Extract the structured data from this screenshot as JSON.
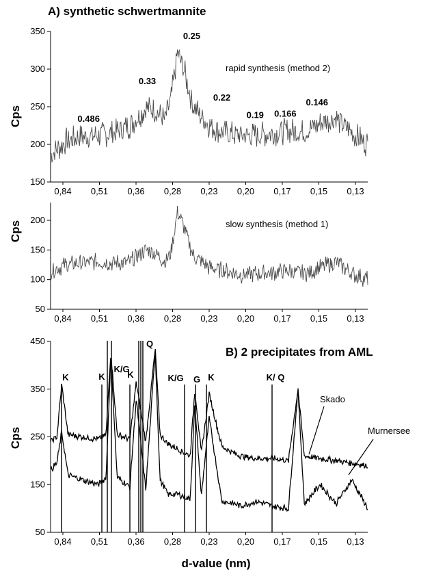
{
  "figure": {
    "x_axis_label": "d-value (nm)"
  },
  "chart_data": [
    {
      "type": "line",
      "title": "A) synthetic schwertmannite",
      "subtitle": "",
      "xlabel": "",
      "ylabel": "Cps",
      "ylim": [
        150,
        350
      ],
      "yticks": [
        150,
        200,
        250,
        300,
        350
      ],
      "xtick_labels": [
        "0,84",
        "0,51",
        "0,36",
        "0,28",
        "0,23",
        "0,20",
        "0,17",
        "0,15",
        "0,13"
      ],
      "series": [
        {
          "name": "rapid synthesis (method 2)",
          "color": "#4a4a4a",
          "x": [
            0,
            0.5,
            1,
            1.5,
            2,
            2.5,
            3,
            3.3,
            3.6,
            3.8,
            4,
            4.2,
            4.5,
            5,
            5.5,
            6,
            6.5,
            7,
            7.5,
            8,
            8.5,
            9,
            9.5,
            10
          ],
          "values": [
            185,
            205,
            210,
            212,
            215,
            225,
            248,
            245,
            232,
            260,
            322,
            300,
            250,
            225,
            215,
            212,
            212,
            215,
            218,
            216,
            228,
            235,
            215,
            200
          ]
        }
      ],
      "annotations": [
        {
          "text": "0.486",
          "x": 1.2,
          "y": 230
        },
        {
          "text": "0.33",
          "x": 3.05,
          "y": 280
        },
        {
          "text": "0.25",
          "x": 4.45,
          "y": 340
        },
        {
          "text": "0.22",
          "x": 5.4,
          "y": 258
        },
        {
          "text": "0.19",
          "x": 6.45,
          "y": 235
        },
        {
          "text": "0.166",
          "x": 7.4,
          "y": 237
        },
        {
          "text": "0.146",
          "x": 8.4,
          "y": 252
        }
      ],
      "series_label": "rapid synthesis (method 2)"
    },
    {
      "type": "line",
      "title": "",
      "xlabel": "",
      "ylabel": "Cps",
      "ylim": [
        50,
        230
      ],
      "yticks": [
        50,
        100,
        150,
        200
      ],
      "xtick_labels": [
        "0,84",
        "0,51",
        "0,36",
        "0,28",
        "0,23",
        "0,20",
        "0,17",
        "0,15",
        "0,13"
      ],
      "series": [
        {
          "name": "slow synthesis (method 1)",
          "color": "#4a4a4a",
          "x": [
            0,
            0.5,
            1,
            1.5,
            2,
            2.5,
            3,
            3.3,
            3.6,
            3.8,
            4,
            4.2,
            4.5,
            5,
            5.5,
            6,
            6.5,
            7,
            7.5,
            8,
            8.5,
            9,
            9.5,
            10
          ],
          "values": [
            115,
            125,
            128,
            130,
            128,
            130,
            150,
            145,
            130,
            145,
            215,
            190,
            140,
            120,
            115,
            108,
            110,
            112,
            115,
            110,
            120,
            130,
            110,
            100
          ]
        }
      ],
      "series_label": "slow synthesis (method 1)"
    },
    {
      "type": "line",
      "title": "B) 2 precipitates from AML",
      "xlabel": "d-value (nm)",
      "ylabel": "Cps",
      "ylim": [
        50,
        450
      ],
      "yticks": [
        50,
        150,
        250,
        350,
        450
      ],
      "xtick_labels": [
        "0,84",
        "0,51",
        "0,36",
        "0,28",
        "0,23",
        "0,20",
        "0,17",
        "0,15",
        "0,13"
      ],
      "series": [
        {
          "name": "Skado",
          "color": "#000000",
          "x": [
            0,
            0.2,
            0.35,
            0.55,
            1,
            1.5,
            1.75,
            1.9,
            2.1,
            2.5,
            2.7,
            3,
            3.3,
            3.45,
            3.7,
            4,
            4.4,
            4.55,
            4.75,
            5,
            5.4,
            5.8,
            6,
            6.5,
            7,
            7.5,
            7.8,
            8,
            8.5,
            9,
            9.5,
            10
          ],
          "values": [
            240,
            250,
            360,
            255,
            250,
            245,
            255,
            430,
            255,
            245,
            365,
            240,
            435,
            255,
            235,
            225,
            210,
            350,
            215,
            340,
            230,
            215,
            210,
            205,
            205,
            200,
            350,
            210,
            205,
            200,
            195,
            190
          ]
        },
        {
          "name": "Murnersee",
          "color": "#000000",
          "x": [
            0,
            0.2,
            0.35,
            0.55,
            1,
            1.5,
            1.75,
            1.9,
            2.1,
            2.5,
            2.7,
            3,
            3.3,
            3.45,
            3.7,
            4,
            4.4,
            4.55,
            4.75,
            5,
            5.4,
            5.8,
            6,
            6.5,
            7,
            7.5,
            7.8,
            8,
            8.5,
            9,
            9.5,
            10
          ],
          "values": [
            180,
            195,
            260,
            170,
            160,
            150,
            165,
            420,
            165,
            145,
            330,
            140,
            430,
            160,
            130,
            130,
            120,
            320,
            125,
            290,
            115,
            110,
            105,
            115,
            105,
            100,
            350,
            110,
            150,
            110,
            160,
            100
          ]
        }
      ],
      "annotations": [
        "K",
        "K",
        "K/G",
        "K",
        "Q",
        "K/G",
        "G",
        "K",
        "K/ Q"
      ],
      "series_labels": [
        "Skado",
        "Murnersee"
      ]
    }
  ]
}
